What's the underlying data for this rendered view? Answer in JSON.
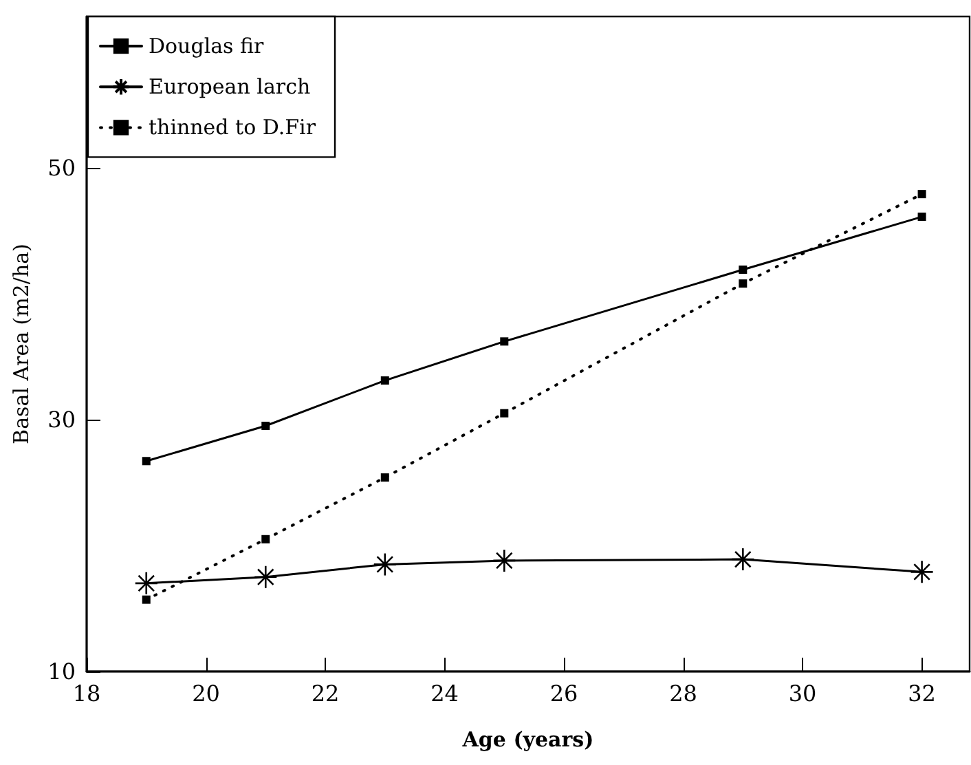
{
  "chart_data": {
    "type": "line",
    "xlabel": "Age (years)",
    "ylabel": "Basal Area (m2/ha)",
    "x": [
      19,
      21,
      23,
      25,
      29,
      32
    ],
    "xlim": [
      18,
      32.8
    ],
    "xticks": [
      18,
      20,
      22,
      24,
      26,
      28,
      30,
      32
    ],
    "ylim": [
      10,
      62
    ],
    "yticks": [
      10,
      30,
      50
    ],
    "grid": false,
    "legend": "top left",
    "series": [
      {
        "name": "Douglas fir",
        "color": "#000000",
        "marker": "square",
        "line_style": "solid",
        "values": [
          26.7,
          29.5,
          33.1,
          36.2,
          41.9,
          46.1
        ]
      },
      {
        "name": "European larch",
        "color": "#000000",
        "marker": "cross",
        "line_style": "solid",
        "values": [
          17.0,
          17.5,
          18.5,
          18.8,
          18.9,
          17.9
        ]
      },
      {
        "name": "thinned to D.Fir",
        "color": "#000000",
        "marker": "square",
        "line_style": "dotted",
        "values": [
          15.7,
          20.5,
          25.4,
          30.5,
          40.8,
          47.9
        ]
      }
    ]
  }
}
